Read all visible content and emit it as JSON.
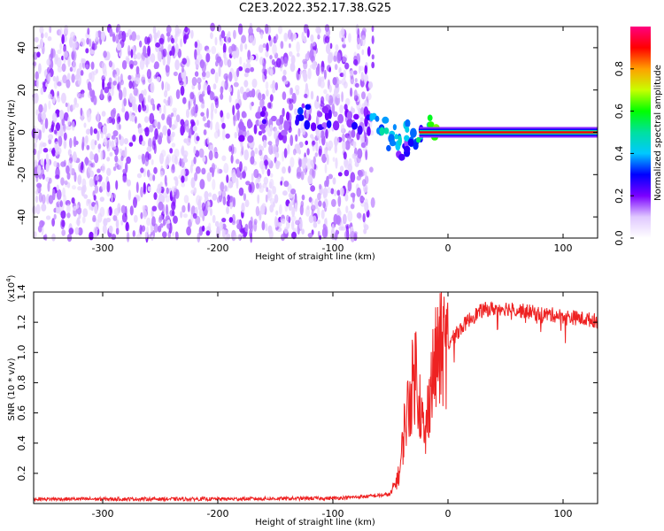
{
  "title": "C2E3.2022.352.17.38.G25",
  "chart_data": [
    {
      "type": "heatmap",
      "xlabel": "Height of straight line (km)",
      "ylabel": "Frequency (Hz)",
      "xlim": [
        -360,
        130
      ],
      "ylim": [
        -50,
        50
      ],
      "xticks": [
        "-300",
        "-200",
        "-100",
        "0",
        "100"
      ],
      "xtick_values": [
        -300,
        -200,
        -100,
        0,
        100
      ],
      "yticks": [
        "-40",
        "-20",
        "0",
        "20",
        "40"
      ],
      "ytick_values": [
        -40,
        -20,
        0,
        20,
        40
      ],
      "colorbar": {
        "label": "Normalized spectral amplitude",
        "ticks": [
          "0.0",
          "0.2",
          "0.4",
          "0.6",
          "0.8"
        ],
        "tick_values": [
          0.0,
          0.2,
          0.4,
          0.6,
          0.8
        ],
        "range": [
          0,
          1
        ],
        "colormap": [
          "#ffffff",
          "#e0c8ff",
          "#7a00ff",
          "#0000ff",
          "#00c8ff",
          "#00e0a0",
          "#00ff00",
          "#c8ff00",
          "#ffa000",
          "#ff0000",
          "#ff0080"
        ]
      },
      "noise_region": {
        "x_range": [
          -360,
          -65
        ],
        "level": 0.12
      },
      "carrier": {
        "x_range": [
          -25,
          130
        ],
        "frequency": 0,
        "amplitude": 0.9
      },
      "transition_points": [
        {
          "x": -175,
          "y": 0,
          "v": 0.2
        },
        {
          "x": -160,
          "y": 5,
          "v": 0.25
        },
        {
          "x": -145,
          "y": 3,
          "v": 0.2
        },
        {
          "x": -125,
          "y": 8,
          "v": 0.35
        },
        {
          "x": -110,
          "y": 6,
          "v": 0.25
        },
        {
          "x": -100,
          "y": 8,
          "v": 0.3
        },
        {
          "x": -88,
          "y": 4,
          "v": 0.22
        },
        {
          "x": -75,
          "y": 5,
          "v": 0.3
        },
        {
          "x": -60,
          "y": 5,
          "v": 0.45
        },
        {
          "x": -52,
          "y": -2,
          "v": 0.5
        },
        {
          "x": -45,
          "y": -5,
          "v": 0.45
        },
        {
          "x": -40,
          "y": -10,
          "v": 0.3
        },
        {
          "x": -35,
          "y": 0,
          "v": 0.5
        },
        {
          "x": -30,
          "y": -3,
          "v": 0.4
        },
        {
          "x": -20,
          "y": 0,
          "v": 0.55
        },
        {
          "x": -10,
          "y": 2,
          "v": 0.7
        }
      ]
    },
    {
      "type": "line",
      "xlabel": "Height of straight line (km)",
      "ylabel": "SNR (10 * v/v)",
      "scale_note": "(x10",
      "scale_exp": "4",
      "scale_close": ")",
      "xlim": [
        -360,
        130
      ],
      "ylim": [
        0,
        14000
      ],
      "xticks": [
        "-300",
        "-200",
        "-100",
        "0",
        "100"
      ],
      "xtick_values": [
        -300,
        -200,
        -100,
        0,
        100
      ],
      "yticks": [
        "0.2",
        "0.4",
        "0.6",
        "0.8",
        "1.0",
        "1.2",
        "1.4"
      ],
      "ytick_values": [
        2000,
        4000,
        6000,
        8000,
        10000,
        12000,
        14000
      ],
      "series": [
        {
          "color": "#ee2222",
          "x": [
            -360,
            -300,
            -200,
            -100,
            -75,
            -50,
            -42,
            -38,
            -33,
            -28,
            -24,
            -20,
            -16,
            -12,
            -8,
            0,
            10,
            20,
            30,
            40,
            50,
            60,
            70,
            80,
            90,
            100,
            110,
            120,
            130
          ],
          "y": [
            300,
            300,
            300,
            350,
            450,
            600,
            2000,
            5000,
            7000,
            9000,
            6500,
            4000,
            7500,
            9000,
            10000,
            10500,
            11500,
            12300,
            12800,
            12900,
            12950,
            12800,
            12700,
            12550,
            12500,
            12400,
            12300,
            12200,
            12100
          ]
        }
      ]
    }
  ]
}
